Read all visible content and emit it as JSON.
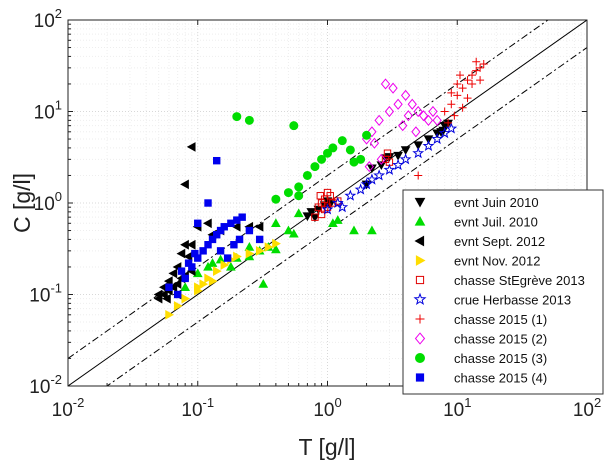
{
  "chart_data": {
    "type": "scatter",
    "title": "",
    "xlabel": "T [g/l]",
    "ylabel": "C [g/l]",
    "xscale": "log",
    "yscale": "log",
    "xlim": [
      0.01,
      100
    ],
    "ylim": [
      0.01,
      100
    ],
    "x_tick_labels": [
      {
        "base": "10",
        "exp": "-2"
      },
      {
        "base": "10",
        "exp": "-1"
      },
      {
        "base": "10",
        "exp": "0"
      },
      {
        "base": "10",
        "exp": "1"
      },
      {
        "base": "10",
        "exp": "2"
      }
    ],
    "y_tick_labels": [
      {
        "base": "10",
        "exp": "-2"
      },
      {
        "base": "10",
        "exp": "-1"
      },
      {
        "base": "10",
        "exp": "0"
      },
      {
        "base": "10",
        "exp": "1"
      },
      {
        "base": "10",
        "exp": "2"
      }
    ],
    "grid": true,
    "legend_position": "bottom-right",
    "reference_lines": [
      {
        "style": "solid",
        "color": "#000000",
        "ratio": 1
      },
      {
        "style": "dash-dot",
        "color": "#000000",
        "ratio": 2
      },
      {
        "style": "dash-dot",
        "color": "#000000",
        "ratio": 0.5
      }
    ],
    "series": [
      {
        "name": "evnt Juin 2010",
        "marker": "triangle-down",
        "color": "#000000",
        "filled": true,
        "points": [
          [
            0.7,
            0.72
          ],
          [
            0.75,
            0.8
          ],
          [
            0.85,
            0.85
          ],
          [
            0.95,
            0.95
          ],
          [
            1.05,
            0.97
          ],
          [
            0.8,
            0.7
          ],
          [
            1.0,
            1.05
          ],
          [
            2.0,
            1.6
          ],
          [
            2.6,
            2.6
          ],
          [
            3.0,
            3.2
          ],
          [
            4.0,
            3.8
          ],
          [
            5.0,
            4.3
          ],
          [
            6.0,
            5.0
          ],
          [
            7.0,
            5.8
          ],
          [
            7.5,
            6.0
          ],
          [
            8.0,
            7.0
          ],
          [
            8.5,
            7.4
          ],
          [
            7.8,
            6.2
          ],
          [
            3.5,
            3.3
          ],
          [
            2.2,
            2.4
          ],
          [
            2.8,
            3.1
          ]
        ]
      },
      {
        "name": "evnt Juil. 2010",
        "marker": "triangle-up",
        "color": "#00dd00",
        "filled": true,
        "points": [
          [
            0.08,
            0.12
          ],
          [
            0.1,
            0.17
          ],
          [
            0.12,
            0.2
          ],
          [
            0.15,
            0.24
          ],
          [
            0.2,
            0.25
          ],
          [
            0.25,
            0.33
          ],
          [
            0.3,
            0.3
          ],
          [
            0.35,
            0.33
          ],
          [
            0.4,
            0.31
          ],
          [
            0.4,
            0.6
          ],
          [
            0.5,
            0.5
          ],
          [
            0.55,
            0.46
          ],
          [
            0.32,
            0.13
          ],
          [
            0.6,
            0.77
          ],
          [
            1.2,
            0.65
          ],
          [
            1.1,
            0.6
          ],
          [
            1.6,
            0.5
          ],
          [
            2.2,
            0.5
          ],
          [
            0.25,
            0.26
          ],
          [
            0.18,
            0.2
          ],
          [
            0.13,
            0.22
          ]
        ]
      },
      {
        "name": "evnt Sept. 2012",
        "marker": "triangle-left",
        "color": "#000000",
        "filled": true,
        "points": [
          [
            0.05,
            0.1
          ],
          [
            0.055,
            0.12
          ],
          [
            0.06,
            0.14
          ],
          [
            0.065,
            0.17
          ],
          [
            0.07,
            0.2
          ],
          [
            0.075,
            0.28
          ],
          [
            0.08,
            0.35
          ],
          [
            0.09,
            0.35
          ],
          [
            0.1,
            0.55
          ],
          [
            0.12,
            0.6
          ],
          [
            0.13,
            0.45
          ],
          [
            0.15,
            0.5
          ],
          [
            0.2,
            0.55
          ],
          [
            0.25,
            0.55
          ],
          [
            0.3,
            0.55
          ],
          [
            0.06,
            0.11
          ],
          [
            0.058,
            0.09
          ],
          [
            0.07,
            0.13
          ],
          [
            0.075,
            0.15
          ],
          [
            0.09,
            0.18
          ],
          [
            0.085,
            0.26
          ],
          [
            0.08,
            1.6
          ],
          [
            0.09,
            4.1
          ],
          [
            0.05,
            0.09
          ],
          [
            0.065,
            0.12
          ],
          [
            0.07,
            0.1
          ],
          [
            0.055,
            0.1
          ],
          [
            0.08,
            0.16
          ]
        ]
      },
      {
        "name": "evnt Nov. 2012",
        "marker": "triangle-right",
        "color": "#ffdd00",
        "filled": true,
        "points": [
          [
            0.06,
            0.06
          ],
          [
            0.07,
            0.075
          ],
          [
            0.08,
            0.09
          ],
          [
            0.1,
            0.12
          ],
          [
            0.12,
            0.15
          ],
          [
            0.14,
            0.18
          ],
          [
            0.16,
            0.21
          ],
          [
            0.18,
            0.24
          ],
          [
            0.2,
            0.26
          ],
          [
            0.25,
            0.28
          ],
          [
            0.3,
            0.3
          ],
          [
            0.35,
            0.33
          ],
          [
            0.4,
            0.36
          ],
          [
            0.1,
            0.11
          ],
          [
            0.11,
            0.13
          ],
          [
            0.13,
            0.14
          ]
        ]
      },
      {
        "name": "chasse StEgrève 2013",
        "marker": "square",
        "color": "#e00000",
        "filled": false,
        "points": [
          [
            0.8,
            0.7
          ],
          [
            0.85,
            0.9
          ],
          [
            0.9,
            1.0
          ],
          [
            0.95,
            1.1
          ],
          [
            1.0,
            1.3
          ],
          [
            1.05,
            1.2
          ],
          [
            1.1,
            1.0
          ],
          [
            1.0,
            0.9
          ],
          [
            0.9,
            0.75
          ],
          [
            0.95,
            0.85
          ],
          [
            1.2,
            1.05
          ],
          [
            0.88,
            1.2
          ],
          [
            2.8,
            3.0
          ],
          [
            2.9,
            3.5
          ],
          [
            3.0,
            2.8
          ]
        ]
      },
      {
        "name": "crue Herbasse 2013",
        "marker": "star",
        "color": "#0000dd",
        "filled": false,
        "points": [
          [
            1.0,
            0.85
          ],
          [
            1.2,
            1.0
          ],
          [
            1.5,
            1.2
          ],
          [
            1.8,
            1.4
          ],
          [
            2.0,
            1.6
          ],
          [
            2.5,
            2.0
          ],
          [
            3.0,
            2.3
          ],
          [
            3.5,
            2.6
          ],
          [
            4.0,
            3.0
          ],
          [
            5.0,
            3.5
          ],
          [
            6.0,
            4.2
          ],
          [
            7.0,
            5.0
          ],
          [
            8.0,
            5.8
          ],
          [
            9.0,
            6.5
          ],
          [
            1.3,
            0.9
          ],
          [
            2.2,
            1.8
          ]
        ]
      },
      {
        "name": "chasse 2015 (1)",
        "marker": "plus",
        "color": "#ee0000",
        "filled": false,
        "points": [
          [
            8.0,
            10.0
          ],
          [
            9.0,
            12.0
          ],
          [
            10.0,
            15.0
          ],
          [
            11.0,
            18.0
          ],
          [
            12.0,
            22.0
          ],
          [
            13.0,
            25.0
          ],
          [
            14.0,
            28.0
          ],
          [
            15.0,
            30.0
          ],
          [
            16.0,
            33.0
          ],
          [
            10.0,
            20.0
          ],
          [
            12.0,
            14.0
          ],
          [
            9.5,
            9.0
          ],
          [
            11.0,
            11.0
          ],
          [
            13.0,
            20.0
          ],
          [
            15.0,
            22.0
          ],
          [
            8.5,
            7.5
          ],
          [
            10.5,
            25.0
          ],
          [
            9.0,
            16.0
          ],
          [
            14.0,
            35.0
          ],
          [
            5.0,
            2.0
          ]
        ]
      },
      {
        "name": "chasse 2015 (2)",
        "marker": "diamond",
        "color": "#ee00ee",
        "filled": false,
        "points": [
          [
            2.0,
            5.0
          ],
          [
            2.2,
            6.0
          ],
          [
            2.5,
            8.0
          ],
          [
            3.0,
            10.0
          ],
          [
            3.5,
            12.0
          ],
          [
            4.0,
            15.0
          ],
          [
            4.5,
            12.0
          ],
          [
            5.0,
            10.0
          ],
          [
            5.5,
            9.0
          ],
          [
            6.0,
            8.0
          ],
          [
            2.3,
            4.5
          ],
          [
            2.8,
            20.0
          ],
          [
            3.2,
            18.0
          ],
          [
            4.2,
            9.0
          ],
          [
            3.8,
            7.0
          ],
          [
            4.8,
            6.0
          ],
          [
            6.5,
            10.0
          ],
          [
            7.0,
            8.0
          ],
          [
            2.6,
            3.0
          ],
          [
            2.1,
            2.5
          ]
        ]
      },
      {
        "name": "chasse 2015 (3)",
        "marker": "circle",
        "color": "#00dd00",
        "filled": true,
        "points": [
          [
            0.4,
            1.1
          ],
          [
            0.5,
            1.3
          ],
          [
            0.6,
            1.5
          ],
          [
            0.7,
            2.0
          ],
          [
            0.8,
            2.5
          ],
          [
            0.9,
            3.0
          ],
          [
            1.0,
            3.5
          ],
          [
            1.1,
            4.0
          ],
          [
            1.3,
            4.8
          ],
          [
            1.5,
            3.8
          ],
          [
            1.6,
            2.8
          ],
          [
            1.8,
            3.0
          ],
          [
            2.0,
            5.5
          ],
          [
            0.2,
            8.8
          ],
          [
            0.25,
            8.0
          ],
          [
            0.55,
            7.0
          ],
          [
            0.6,
            1.2
          ]
        ]
      },
      {
        "name": "chasse 2015 (4)",
        "marker": "square",
        "color": "#0000ee",
        "filled": true,
        "points": [
          [
            0.07,
            0.1
          ],
          [
            0.08,
            0.15
          ],
          [
            0.09,
            0.2
          ],
          [
            0.1,
            0.25
          ],
          [
            0.11,
            0.3
          ],
          [
            0.12,
            0.35
          ],
          [
            0.13,
            0.4
          ],
          [
            0.14,
            0.45
          ],
          [
            0.15,
            0.5
          ],
          [
            0.16,
            0.55
          ],
          [
            0.18,
            0.6
          ],
          [
            0.2,
            0.65
          ],
          [
            0.22,
            0.7
          ],
          [
            0.25,
            0.5
          ],
          [
            0.3,
            0.4
          ],
          [
            0.06,
            0.12
          ],
          [
            0.075,
            0.18
          ],
          [
            0.085,
            0.22
          ],
          [
            0.095,
            0.28
          ],
          [
            0.1,
            0.6
          ],
          [
            0.12,
            1.0
          ],
          [
            0.14,
            2.9
          ],
          [
            0.15,
            0.3
          ],
          [
            0.17,
            0.25
          ],
          [
            0.19,
            0.35
          ],
          [
            0.21,
            0.4
          ]
        ]
      }
    ]
  }
}
